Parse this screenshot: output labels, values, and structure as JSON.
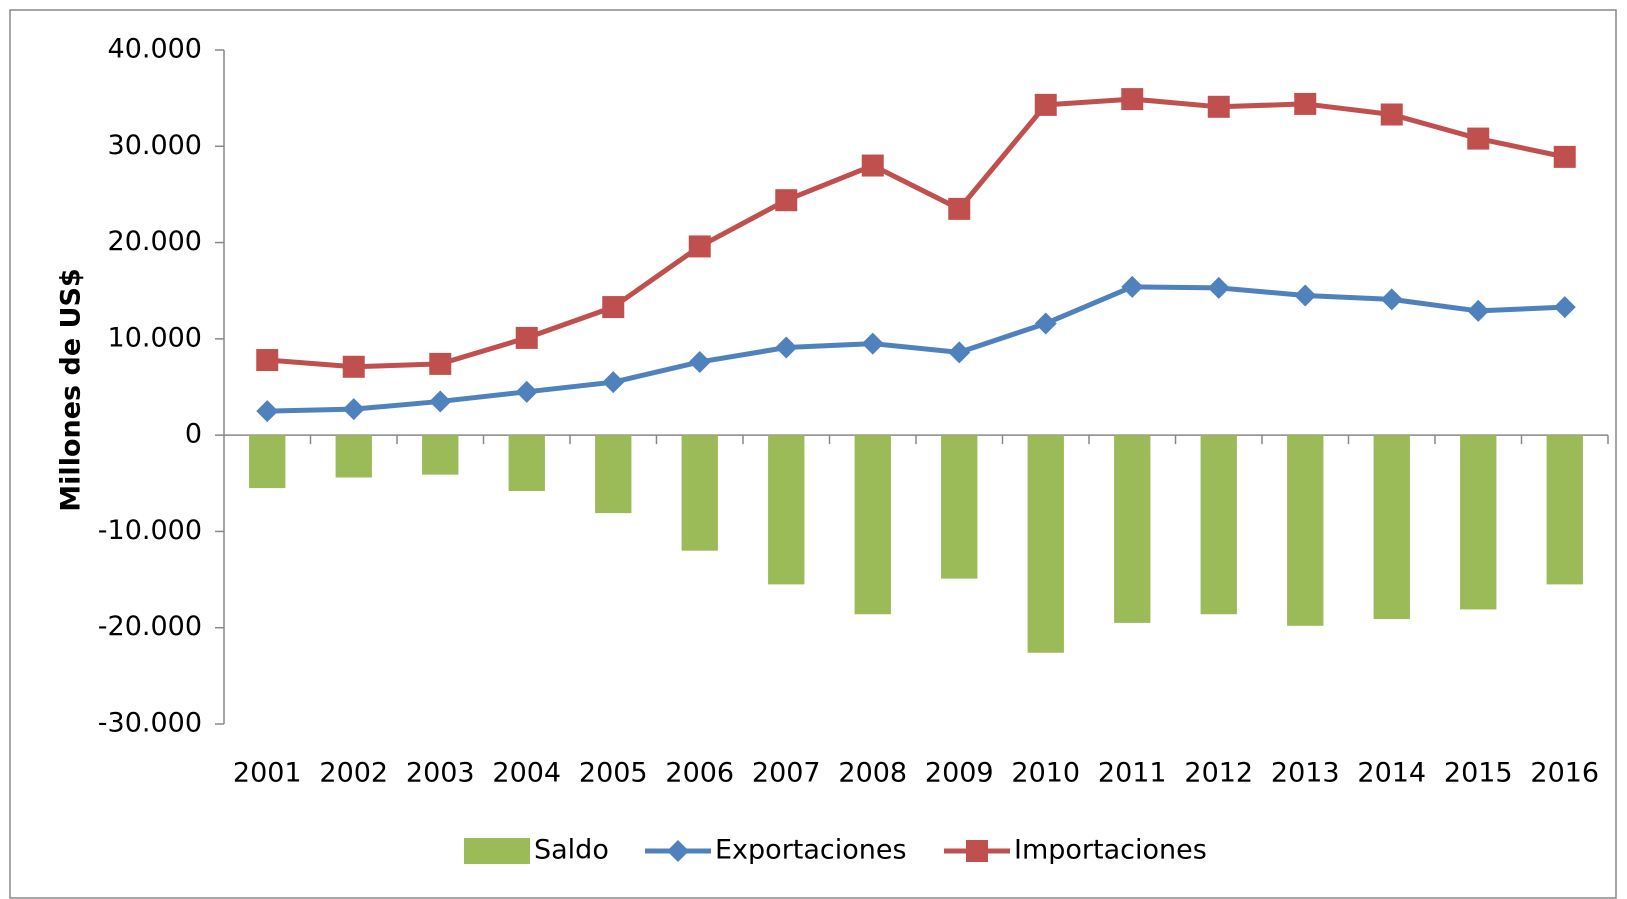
{
  "chart_data": {
    "type": "combo",
    "ylabel": "Millones de US$",
    "categories": [
      "2001",
      "2002",
      "2003",
      "2004",
      "2005",
      "2006",
      "2007",
      "2008",
      "2009",
      "2010",
      "2011",
      "2012",
      "2013",
      "2014",
      "2015",
      "2016"
    ],
    "series": [
      {
        "name": "Saldo",
        "type": "bar",
        "color": "#9bbb59",
        "values": [
          -5500,
          -4400,
          -4100,
          -5800,
          -8100,
          -12000,
          -15500,
          -18600,
          -14900,
          -22600,
          -19500,
          -18600,
          -19800,
          -19100,
          -18100,
          -15500
        ]
      },
      {
        "name": "Exportaciones",
        "type": "line",
        "marker": "diamond",
        "color": "#4f81bd",
        "values": [
          2500,
          2700,
          3500,
          4500,
          5500,
          7600,
          9100,
          9500,
          8600,
          11600,
          15400,
          15300,
          14500,
          14100,
          12900,
          13300
        ]
      },
      {
        "name": "Importaciones",
        "type": "line",
        "marker": "square",
        "color": "#c0504d",
        "values": [
          7800,
          7100,
          7400,
          10100,
          13300,
          19600,
          24400,
          28000,
          23500,
          34300,
          34900,
          34100,
          34400,
          33300,
          30800,
          28900
        ]
      }
    ],
    "ylim": [
      -30000,
      40000
    ],
    "yticks": [
      {
        "value": -30000,
        "label": "-30.000"
      },
      {
        "value": -20000,
        "label": "-20.000"
      },
      {
        "value": -10000,
        "label": "-10.000"
      },
      0,
      {
        "value": 10000,
        "label": "10.000"
      },
      {
        "value": 20000,
        "label": "20.000"
      },
      {
        "value": 30000,
        "label": "30.000"
      },
      {
        "value": 40000,
        "label": "40.000"
      }
    ],
    "legend": "bottom"
  }
}
